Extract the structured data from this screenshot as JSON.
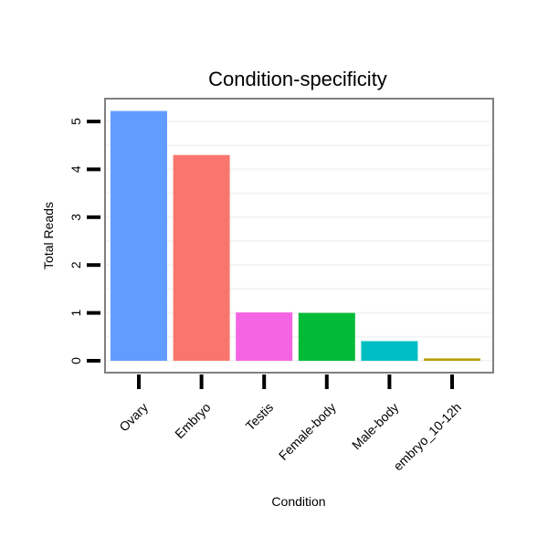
{
  "chart_data": {
    "type": "bar",
    "title": "Condition-specificity",
    "xlabel": "Condition",
    "ylabel": "Total Reads",
    "categories": [
      "Ovary",
      "Embryo",
      "Testis",
      "Female-body",
      "Male-body",
      "embryo_10-12h"
    ],
    "values": [
      5.22,
      4.3,
      1.01,
      1.0,
      0.41,
      0.05
    ],
    "colors": [
      "#619CFF",
      "#F8766D",
      "#F564E3",
      "#00BA38",
      "#00BFC4",
      "#B79F00"
    ],
    "yticks": [
      0,
      1,
      2,
      3,
      4,
      5
    ],
    "ylim": [
      -0.25,
      5.45
    ],
    "grid": true,
    "legend": "none"
  }
}
